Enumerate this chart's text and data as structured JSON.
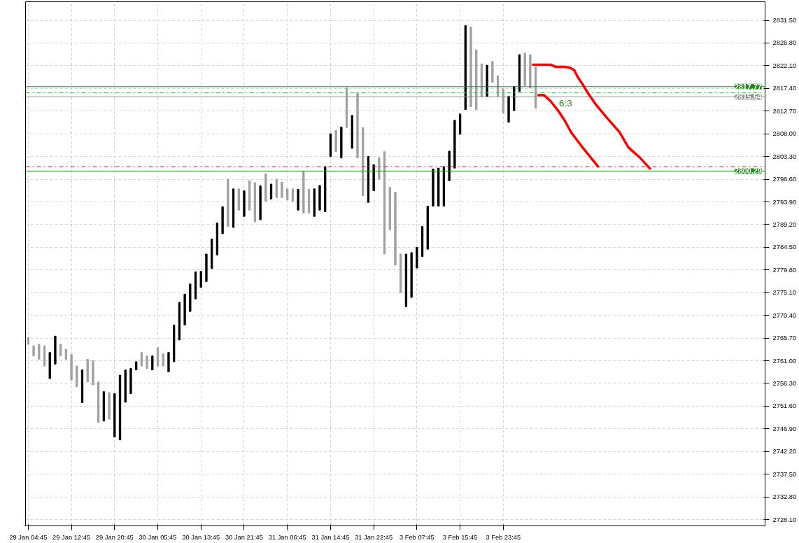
{
  "chart_data": {
    "type": "candlestick",
    "categories": [
      "29 Jan 04:45",
      null,
      null,
      null,
      null,
      null,
      null,
      null,
      "29 Jan 12:45",
      null,
      null,
      null,
      null,
      null,
      null,
      null,
      "29 Jan 20:45",
      null,
      null,
      null,
      null,
      null,
      null,
      null,
      "30 Jan 05:45",
      null,
      null,
      null,
      null,
      null,
      null,
      null,
      "30 Jan 13:45",
      null,
      null,
      null,
      null,
      null,
      null,
      null,
      "30 Jan 21:45",
      null,
      null,
      null,
      null,
      null,
      null,
      null,
      "31 Jan 06:45",
      null,
      null,
      null,
      null,
      null,
      null,
      null,
      "31 Jan 14:45",
      null,
      null,
      null,
      null,
      null,
      null,
      null,
      "31 Jan 22:45",
      null,
      null,
      null,
      null,
      null,
      null,
      null,
      "3 Feb 07:45",
      null,
      null,
      null,
      null,
      null,
      null,
      null,
      "3 Feb 15:45",
      null,
      null,
      null,
      null,
      null,
      null,
      null,
      "3 Feb 23:45",
      null,
      null,
      null,
      null,
      null,
      null,
      null,
      null,
      null,
      null,
      null,
      null,
      null,
      null,
      null,
      null,
      null,
      null,
      null,
      null,
      null,
      null,
      null,
      null,
      null,
      null,
      null,
      null,
      null,
      null,
      null,
      null,
      null,
      null,
      null,
      null,
      null,
      null,
      null,
      null,
      null,
      null,
      null,
      null,
      null,
      null,
      null,
      null
    ],
    "ohlc": [
      [
        2765.8,
        2765.8,
        2764.4,
        2764.4
      ],
      [
        2764.1,
        2764.1,
        2762.0,
        2762.0
      ],
      [
        2764.4,
        2764.4,
        2761.3,
        2761.3
      ],
      [
        2764.1,
        2764.1,
        2759.9,
        2759.9
      ],
      [
        2757.3,
        2762.7,
        2757.3,
        2762.7
      ],
      [
        2760.3,
        2766.1,
        2760.3,
        2766.1
      ],
      [
        2764.4,
        2764.4,
        2762.0,
        2762.0
      ],
      [
        2763.4,
        2763.4,
        2761.3,
        2761.3
      ],
      [
        2762.3,
        2762.3,
        2757.0,
        2757.0
      ],
      [
        2759.9,
        2759.9,
        2755.6,
        2755.6
      ],
      [
        2752.3,
        2759.1,
        2752.3,
        2759.1
      ],
      [
        2761.3,
        2761.3,
        2756.6,
        2756.6
      ],
      [
        2761.0,
        2761.0,
        2756.0,
        2756.0
      ],
      [
        2756.6,
        2756.6,
        2748.2,
        2748.2
      ],
      [
        2748.5,
        2754.6,
        2748.5,
        2754.6
      ],
      [
        2754.4,
        2754.4,
        2748.9,
        2748.9
      ],
      [
        2745.2,
        2754.2,
        2745.2,
        2754.2
      ],
      [
        2744.6,
        2758.0,
        2744.6,
        2758.0
      ],
      [
        2752.4,
        2759.1,
        2752.4,
        2759.1
      ],
      [
        2754.2,
        2759.4,
        2754.2,
        2759.4
      ],
      [
        2759.1,
        2760.8,
        2759.1,
        2760.8
      ],
      [
        2762.7,
        2762.7,
        2759.9,
        2759.9
      ],
      [
        2762.0,
        2762.0,
        2759.4,
        2759.4
      ],
      [
        2759.1,
        2762.0,
        2759.1,
        2762.0
      ],
      [
        2763.7,
        2763.7,
        2759.9,
        2759.9
      ],
      [
        2762.4,
        2762.4,
        2759.9,
        2759.9
      ],
      [
        2758.7,
        2762.7,
        2758.7,
        2762.7
      ],
      [
        2760.8,
        2768.4,
        2760.8,
        2768.4
      ],
      [
        2765.3,
        2773.1,
        2765.3,
        2773.1
      ],
      [
        2768.4,
        2774.8,
        2768.4,
        2774.8
      ],
      [
        2771.2,
        2776.9,
        2771.2,
        2776.9
      ],
      [
        2773.8,
        2779.4,
        2773.8,
        2779.4
      ],
      [
        2776.2,
        2779.5,
        2776.2,
        2779.5
      ],
      [
        2777.4,
        2783.1,
        2777.4,
        2783.1
      ],
      [
        2780.1,
        2786.2,
        2780.1,
        2786.2
      ],
      [
        2782.9,
        2789.5,
        2782.9,
        2789.5
      ],
      [
        2787.3,
        2792.9,
        2787.3,
        2792.9
      ],
      [
        2798.6,
        2798.6,
        2788.8,
        2788.8
      ],
      [
        2788.6,
        2796.6,
        2788.6,
        2796.6
      ],
      [
        2796.6,
        2796.6,
        2792.2,
        2792.2
      ],
      [
        2790.9,
        2796.2,
        2790.9,
        2796.2
      ],
      [
        2798.3,
        2798.3,
        2792.2,
        2792.2
      ],
      [
        2797.9,
        2797.9,
        2789.8,
        2789.8
      ],
      [
        2790.2,
        2797.2,
        2790.2,
        2797.2
      ],
      [
        2799.7,
        2799.7,
        2794.0,
        2794.0
      ],
      [
        2794.5,
        2797.6,
        2794.5,
        2797.6
      ],
      [
        2798.6,
        2798.6,
        2794.8,
        2794.8
      ],
      [
        2798.0,
        2798.0,
        2794.8,
        2794.8
      ],
      [
        2796.6,
        2796.6,
        2794.3,
        2794.3
      ],
      [
        2796.6,
        2796.6,
        2794.0,
        2794.0
      ],
      [
        2792.2,
        2796.5,
        2792.2,
        2796.5
      ],
      [
        2800.2,
        2800.2,
        2791.6,
        2791.6
      ],
      [
        2796.5,
        2796.5,
        2791.6,
        2791.6
      ],
      [
        2790.9,
        2796.6,
        2790.9,
        2796.6
      ],
      [
        2792.2,
        2797.3,
        2792.2,
        2797.3
      ],
      [
        2791.9,
        2801.2,
        2791.9,
        2801.2
      ],
      [
        2803.3,
        2808.0,
        2803.3,
        2808.0
      ],
      [
        2808.7,
        2808.7,
        2804.3,
        2804.3
      ],
      [
        2803.0,
        2809.4,
        2803.0,
        2809.4
      ],
      [
        2817.5,
        2817.5,
        2809.3,
        2809.3
      ],
      [
        2805.0,
        2811.8,
        2805.0,
        2811.8
      ],
      [
        2816.5,
        2816.5,
        2803.0,
        2803.0
      ],
      [
        2809.3,
        2809.3,
        2795.2,
        2795.2
      ],
      [
        2793.8,
        2803.3,
        2793.8,
        2803.3
      ],
      [
        2796.2,
        2801.6,
        2796.2,
        2801.6
      ],
      [
        2803.0,
        2803.0,
        2798.6,
        2798.6
      ],
      [
        2804.3,
        2804.3,
        2783.1,
        2783.1
      ],
      [
        2796.9,
        2796.9,
        2788.1,
        2788.1
      ],
      [
        2795.9,
        2795.9,
        2780.8,
        2780.8
      ],
      [
        2783.1,
        2783.1,
        2775.1,
        2775.1
      ],
      [
        2772.2,
        2783.1,
        2772.2,
        2783.1
      ],
      [
        2774.1,
        2783.4,
        2774.1,
        2783.4
      ],
      [
        2780.2,
        2784.5,
        2780.2,
        2784.5
      ],
      [
        2782.6,
        2788.8,
        2782.6,
        2788.8
      ],
      [
        2784.1,
        2793.0,
        2784.1,
        2793.0
      ],
      [
        2793.0,
        2800.7,
        2793.0,
        2800.7
      ],
      [
        2793.0,
        2800.9,
        2793.0,
        2800.9
      ],
      [
        2793.0,
        2801.2,
        2793.0,
        2801.2
      ],
      [
        2798.3,
        2804.4,
        2798.3,
        2804.4
      ],
      [
        2800.9,
        2810.8,
        2800.9,
        2810.8
      ],
      [
        2807.9,
        2812.1,
        2807.9,
        2812.1
      ],
      [
        2813.0,
        2830.4,
        2813.0,
        2830.4
      ],
      [
        2830.1,
        2830.1,
        2813.6,
        2813.6
      ],
      [
        2825.4,
        2825.4,
        2813.0,
        2813.0
      ],
      [
        2822.5,
        2822.5,
        2815.7,
        2815.7
      ],
      [
        2815.8,
        2822.2,
        2815.8,
        2822.2
      ],
      [
        2823.0,
        2823.0,
        2818.7,
        2818.7
      ],
      [
        2820.0,
        2820.0,
        2815.8,
        2815.8
      ],
      [
        2817.3,
        2817.3,
        2812.3,
        2812.3
      ],
      [
        2810.4,
        2815.8,
        2810.4,
        2815.8
      ],
      [
        2812.8,
        2817.8,
        2812.8,
        2817.8
      ],
      [
        2816.8,
        2824.4,
        2816.8,
        2824.4
      ],
      [
        2824.7,
        2824.7,
        2818.0,
        2818.0
      ],
      [
        2824.4,
        2824.4,
        2817.5,
        2817.5
      ],
      [
        2821.8,
        2821.8,
        2813.3,
        2813.3
      ],
      null,
      null,
      null,
      null,
      null,
      null,
      null,
      null,
      null,
      null,
      null,
      null,
      null,
      null,
      null,
      null,
      null,
      null,
      null,
      null,
      null,
      null,
      null,
      null,
      null,
      null,
      null,
      null,
      null,
      null,
      null,
      null,
      null,
      null,
      null,
      null,
      null,
      null,
      null,
      null,
      null,
      null
    ],
    "colors": [
      "#a0a0a0",
      "#a0a0a0",
      "#a0a0a0",
      "#a0a0a0",
      "#000000",
      "#000000",
      "#a0a0a0",
      "#a0a0a0",
      "#a0a0a0",
      "#a0a0a0",
      "#000000",
      "#a0a0a0",
      "#a0a0a0",
      "#a0a0a0",
      "#000000",
      "#a0a0a0",
      "#000000",
      "#000000",
      "#000000",
      "#000000",
      "#000000",
      "#a0a0a0",
      "#a0a0a0",
      "#000000",
      "#a0a0a0",
      "#a0a0a0",
      "#000000",
      "#000000",
      "#000000",
      "#000000",
      "#000000",
      "#000000",
      "#000000",
      "#000000",
      "#000000",
      "#000000",
      "#000000",
      "#a0a0a0",
      "#000000",
      "#a0a0a0",
      "#000000",
      "#a0a0a0",
      "#a0a0a0",
      "#000000",
      "#a0a0a0",
      "#000000",
      "#a0a0a0",
      "#a0a0a0",
      "#a0a0a0",
      "#a0a0a0",
      "#000000",
      "#a0a0a0",
      "#a0a0a0",
      "#000000",
      "#000000",
      "#000000",
      "#000000",
      "#a0a0a0",
      "#000000",
      "#a0a0a0",
      "#000000",
      "#a0a0a0",
      "#a0a0a0",
      "#000000",
      "#000000",
      "#a0a0a0",
      "#a0a0a0",
      "#a0a0a0",
      "#a0a0a0",
      "#a0a0a0",
      "#000000",
      "#000000",
      "#000000",
      "#000000",
      "#000000",
      "#000000",
      "#000000",
      "#000000",
      "#000000",
      "#000000",
      "#000000",
      "#000000",
      "#a0a0a0",
      "#a0a0a0",
      "#a0a0a0",
      "#000000",
      "#a0a0a0",
      "#a0a0a0",
      "#a0a0a0",
      "#000000",
      "#000000",
      "#000000",
      "#a0a0a0",
      "#a0a0a0",
      "#a0a0a0",
      null,
      null,
      null,
      null,
      null,
      null,
      null,
      null,
      null,
      null,
      null,
      null,
      null,
      null,
      null,
      null,
      null,
      null,
      null,
      null,
      null,
      null,
      null,
      null,
      null,
      null,
      null,
      null,
      null,
      null,
      null,
      null,
      null,
      null,
      null,
      null,
      null,
      null,
      null,
      null,
      null,
      null
    ],
    "ylim": [
      2726.8,
      2835.35
    ],
    "yticks": [
      {
        "value": 2831.5,
        "label": "2831.50"
      },
      {
        "value": 2826.8,
        "label": "2826.80"
      },
      {
        "value": 2822.1,
        "label": "2822.10"
      },
      {
        "value": 2817.4,
        "label": "2817.40"
      },
      {
        "value": 2812.7,
        "label": "2812.70"
      },
      {
        "value": 2808.0,
        "label": "2808.00"
      },
      {
        "value": 2803.3,
        "label": "2803.30"
      },
      {
        "value": 2798.6,
        "label": "2798.60"
      },
      {
        "value": 2793.9,
        "label": "2793.90"
      },
      {
        "value": 2789.2,
        "label": "2789.20"
      },
      {
        "value": 2784.5,
        "label": "2784.50"
      },
      {
        "value": 2779.8,
        "label": "2779.80"
      },
      {
        "value": 2775.1,
        "label": "2775.10"
      },
      {
        "value": 2770.4,
        "label": "2770.40"
      },
      {
        "value": 2765.7,
        "label": "2765.70"
      },
      {
        "value": 2761.0,
        "label": "2761.00"
      },
      {
        "value": 2756.3,
        "label": "2756.30"
      },
      {
        "value": 2751.6,
        "label": "2751.60"
      },
      {
        "value": 2746.9,
        "label": "2746.90"
      },
      {
        "value": 2742.2,
        "label": "2742.20"
      },
      {
        "value": 2737.5,
        "label": "2737.50"
      },
      {
        "value": 2732.8,
        "label": "2732.80"
      },
      {
        "value": 2728.1,
        "label": "2728.10"
      }
    ],
    "grid": true,
    "ref_lines": [
      {
        "axis": "y",
        "value": 2817.77,
        "label": "2817.77",
        "color": "#1a8a1a",
        "line_style": "solid"
      },
      {
        "axis": "y",
        "value": 2816.5,
        "color": "#4cbb4c",
        "line_style": "dashdot"
      },
      {
        "axis": "y",
        "value": 2815.64,
        "label": "2815.64",
        "color": "#8c8c8c",
        "line_style": "solid"
      },
      {
        "axis": "y",
        "value": 2801.2,
        "color": "#d42020",
        "line_style": "dashdot"
      },
      {
        "axis": "y",
        "value": 2800.29,
        "label": "2800.29",
        "color": "#1a8a1a",
        "line_style": "solid"
      }
    ],
    "annotations": [
      "6:3"
    ]
  }
}
